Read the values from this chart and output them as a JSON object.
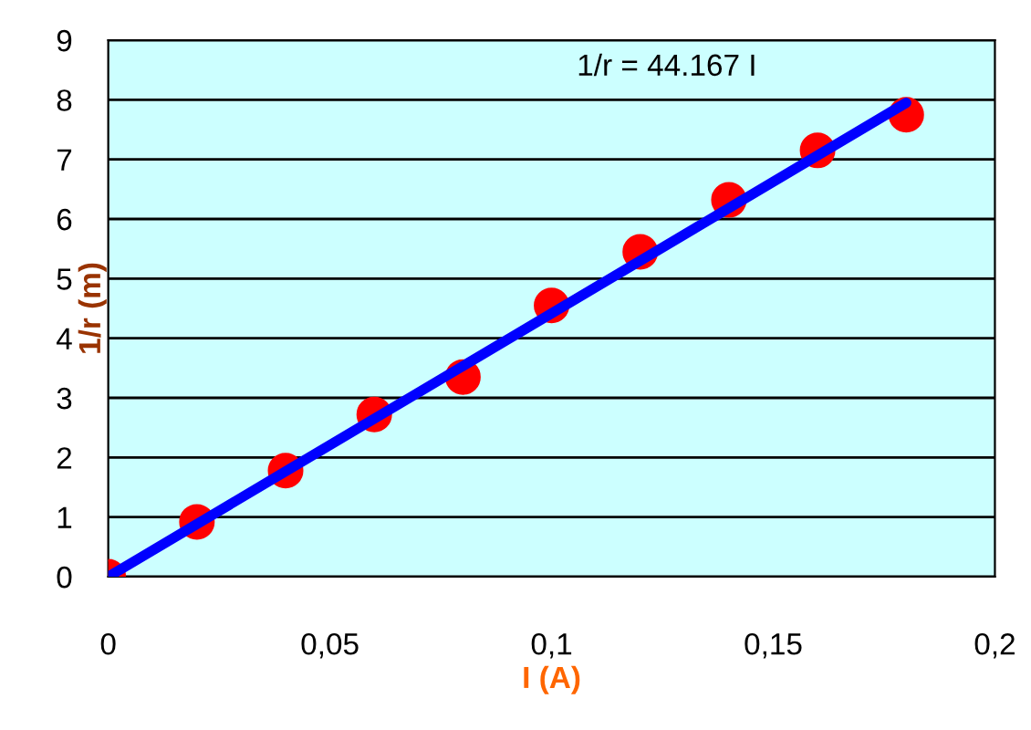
{
  "chart_data": {
    "type": "scatter",
    "xlabel": "I (A)",
    "ylabel": "1/r (m)",
    "annotations": [
      "1/r = 44.167 I"
    ],
    "x": [
      0,
      0.02,
      0.04,
      0.06,
      0.08,
      0.1,
      0.12,
      0.14,
      0.16,
      0.18
    ],
    "series": [
      {
        "color": "#ff0000",
        "marker": "circle",
        "values": [
          0,
          0.92,
          1.78,
          2.72,
          3.35,
          4.55,
          5.45,
          6.32,
          7.15,
          7.75
        ]
      },
      {
        "type": "line",
        "color": "#0000ff",
        "x": [
          0,
          0.18
        ],
        "values": [
          0,
          7.95
        ]
      }
    ],
    "xlim": [
      0,
      0.2
    ],
    "ylim": [
      0,
      9
    ],
    "xticks": [
      0,
      {
        "value": 0.05,
        "label": "0,05"
      },
      {
        "value": 0.1,
        "label": "0,1"
      },
      {
        "value": 0.15,
        "label": "0,15"
      },
      {
        "value": 0.2,
        "label": "0,2"
      }
    ],
    "yticks": [
      0,
      1,
      2,
      3,
      4,
      5,
      6,
      7,
      8,
      9
    ],
    "grid": "y"
  }
}
